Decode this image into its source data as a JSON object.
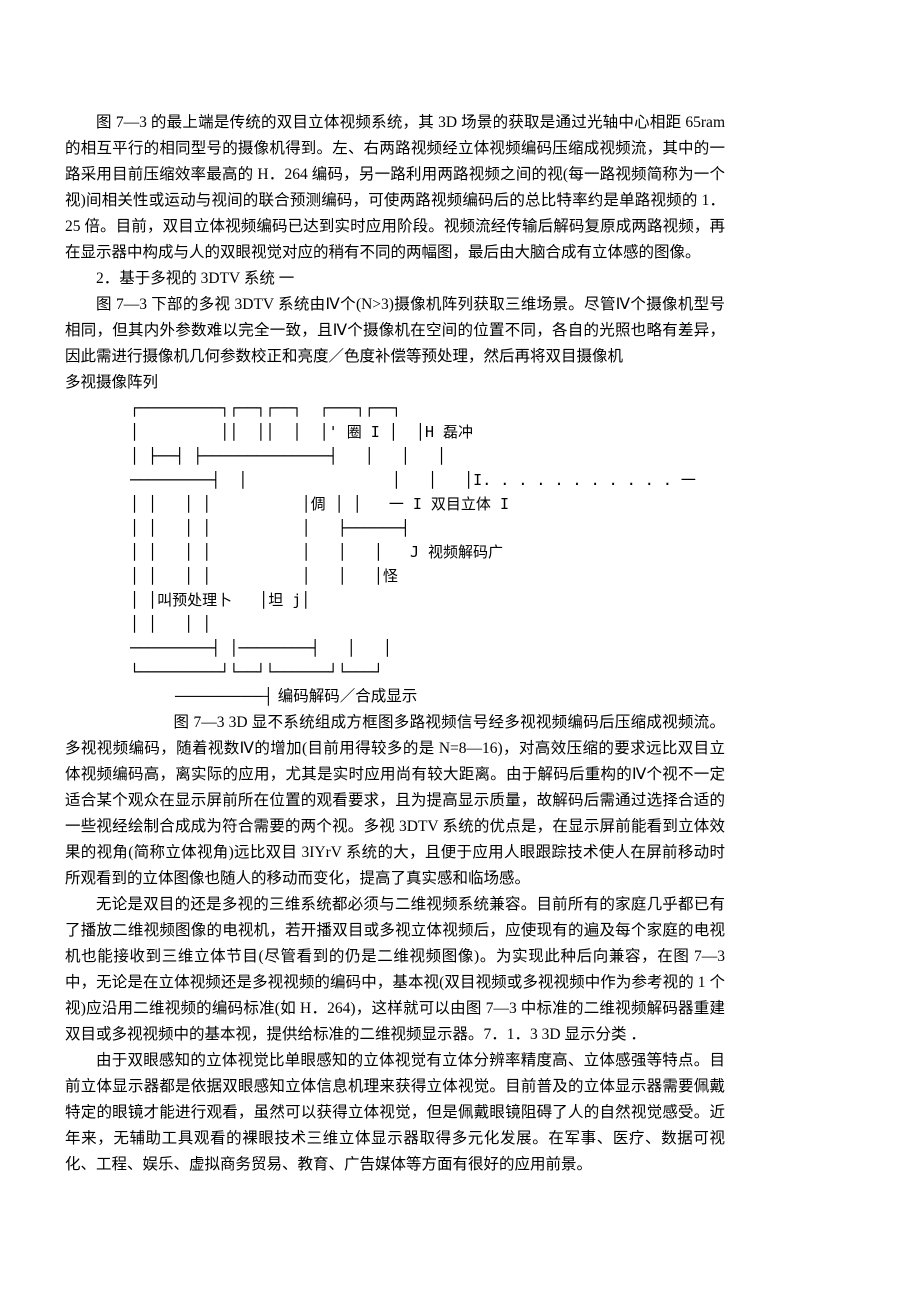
{
  "paragraphs": {
    "p1": "图 7—3 的最上端是传统的双目立体视频系统，其 3D 场景的获取是通过光轴中心相距 65ram 的相互平行的相同型号的摄像机得到。左、右两路视频经立体视频编码压缩成视频流，其中的一路采用目前压缩效率最高的 H．264 编码，另一路利用两路视频之间的视(每一路视频简称为一个视)间相关性或运动与视间的联合预测编码，可使两路视频编码后的总比特率约是单路视频的 1．25 倍。目前，双目立体视频编码已达到实时应用阶段。视频流经传输后解码复原成两路视频，再在显示器中构成与人的双眼视觉对应的稍有不同的两幅图，最后由大脑合成有立体感的图像。",
    "p2": "2．基于多视的 3DTV 系统   一",
    "p3": "图 7—3 下部的多视 3DTV 系统由Ⅳ个(N>3)摄像机阵列获取三维场景。尽管Ⅳ个摄像机型号相同，但其内外参数难以完全一致，且Ⅳ个摄像机在空间的位置不同，各自的光照也略有差异，因此需进行摄像机几何参数校正和亮度／色度补偿等预处理，然后再将双目摄像机",
    "p3_label": "多视摄像阵列",
    "diagram": "┌─────────┐┌──┐┌──┐  ┌───┐┌──┐\n│         ││  ││  │  │' 圈 I │  │H 磊冲\n│ ├──┤ ├──────────────┤   │   │   │\n─────────┤  │                │   │   │I. . . . . . . . . . . 一\n│ │   │ │          │倜 │ │   一 I 双目立体 I\n│ │   │ │          │   ├──────┤\n│ │   │ │          │   │   │   J 视频解码广\n│ │   │ │          │   │   │怪\n│ │叫预处理卜   │坦 j│\n│ │   │ │\n─────────┤ │────────┤   │   │\n└─────────┘└──┘└──────┘└───┘",
    "diagram_caption": "────────┤ 编码解码／合成显示",
    "p4": "图 7—3 3D 显不系统组成方框图多路视频信号经多视视频编码后压缩成视频流。多视视频编码，随着视数Ⅳ的增加(目前用得较多的是 N=8—16)，对高效压缩的要求远比双目立体视频编码高，离实际的应用，尤其是实时应用尚有较大距离。由于解码后重构的Ⅳ个视不一定适合某个观众在显示屏前所在位置的观看要求，且为提高显示质量，故解码后需通过选择合适的一些视经绘制合成成为符合需要的两个视。多视 3DTV 系统的优点是，在显示屏前能看到立体效果的视角(简称立体视角)远比双目 3IYrV 系统的大，且便于应用人眼跟踪技术使人在屏前移动时所观看到的立体图像也随人的移动而变化，提高了真实感和临场感。",
    "p5": "无论是双目的还是多视的三维系统都必须与二维视频系统兼容。目前所有的家庭几乎都已有了播放二维视频图像的电视机，若开播双目或多视立体视频后，应使现有的遍及每个家庭的电视机也能接收到三维立体节目(尽管看到的仍是二维视频图像)。为实现此种后向兼容，在图 7—3 中，无论是在立体视频还是多视视频的编码中，基本视(双目视频或多视视频中作为参考视的 1 个视)应沿用二维视频的编码标准(如 H．264)，这样就可以由图 7—3 中标准的二维视频解码器重建双目或多视视频中的基本视，提供给标准的二维视频显示器。7．1．3 3D 显示分类    ．",
    "p6": "由于双眼感知的立体视觉比单眼感知的立体视觉有立体分辨率精度高、立体感强等特点。目前立体显示器都是依据双眼感知立体信息机理来获得立体视觉。目前普及的立体显示器需要佩戴特定的眼镜才能进行观看，虽然可以获得立体视觉，但是佩戴眼镜阻碍了人的自然视觉感受。近年来，无辅助工具观看的裸眼技术三维立体显示器取得多元化发展。在军事、医疗、数据可视化、工程、娱乐、虚拟商务贸易、教育、广告媒体等方面有很好的应用前景。"
  }
}
